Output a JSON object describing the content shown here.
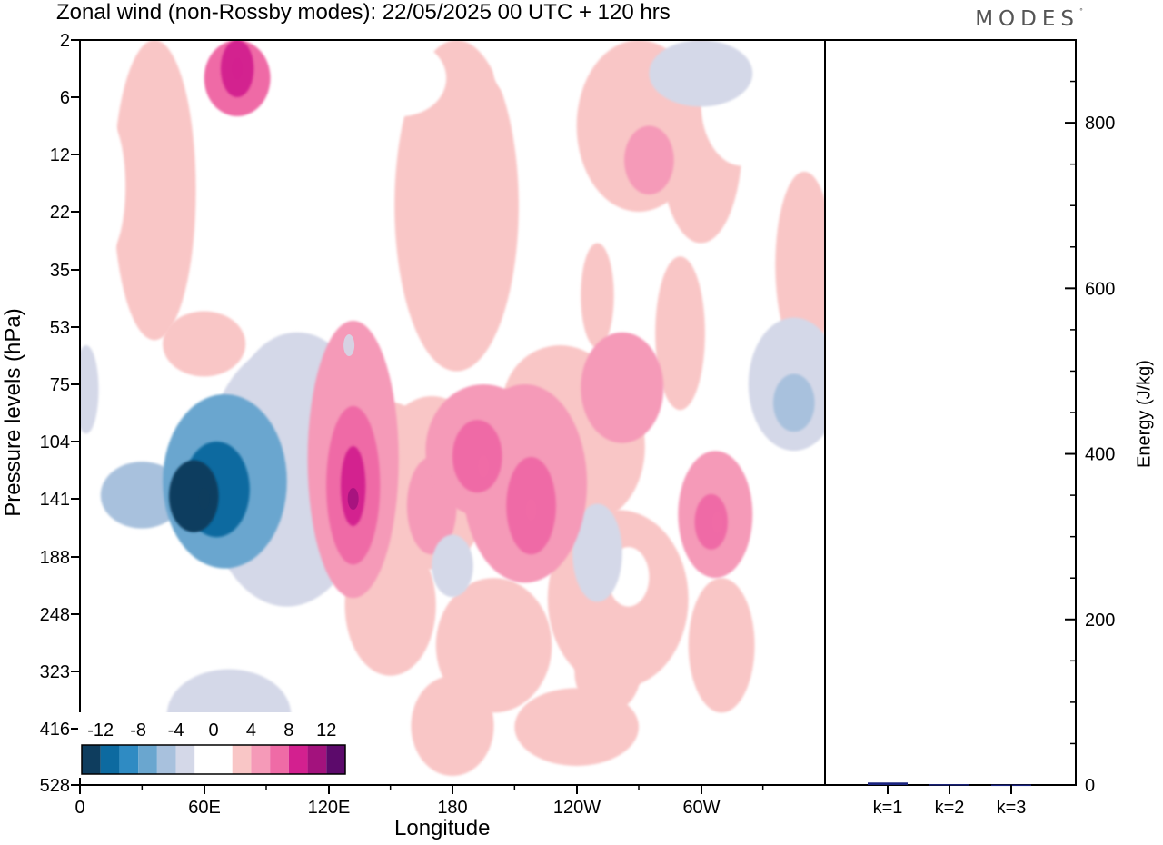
{
  "chart_data": [
    {
      "type": "heatmap",
      "title": "Zonal wind (non-Rossby modes):  22/05/2025  00 UTC  + 120 hrs",
      "xlabel": "Longitude",
      "ylabel": "Pressure levels (hPa)",
      "x_ticks": [
        "0",
        "60E",
        "120E",
        "180",
        "120W",
        "60W"
      ],
      "y_ticks": [
        "2",
        "6",
        "12",
        "22",
        "35",
        "53",
        "75",
        "104",
        "141",
        "188",
        "248",
        "323",
        "416",
        "528"
      ],
      "colorbar": {
        "ticks": [
          "-12",
          "-8",
          "-4",
          "0",
          "4",
          "8",
          "12"
        ],
        "colors": [
          "#0e3d5e",
          "#0d6aa0",
          "#2f8bc3",
          "#6aa6cf",
          "#a8c1dd",
          "#d4d8e8",
          "#ffffff",
          "#ffffff",
          "#f9c6c6",
          "#f59ab8",
          "#ef6ba6",
          "#d3208f",
          "#a3127d",
          "#5c0a6b"
        ]
      },
      "features": [
        {
          "cx": 60,
          "cy": 141,
          "value": -14
        },
        {
          "cx": 132,
          "cy": 141,
          "value": 10
        },
        {
          "cx": 195,
          "cy": 120,
          "value": 7
        },
        {
          "cx": 218,
          "cy": 150,
          "value": 7
        },
        {
          "cx": 308,
          "cy": 160,
          "value": 7
        },
        {
          "cx": 130,
          "cy": 60,
          "value": -4
        },
        {
          "cx": 76,
          "cy": 4,
          "value": 8
        },
        {
          "cx": 270,
          "cy": 14,
          "value": 5
        }
      ]
    },
    {
      "type": "bar",
      "categories": [
        "k=1",
        "k=2",
        "k=3"
      ],
      "values": [
        3,
        1,
        0.5
      ],
      "ylabel": "Energy (J/kg)",
      "ylim": [
        0,
        900
      ],
      "yticks": [
        200,
        400,
        600,
        800
      ],
      "bar_color": "#1a237e"
    }
  ],
  "logo_text": "MODES"
}
